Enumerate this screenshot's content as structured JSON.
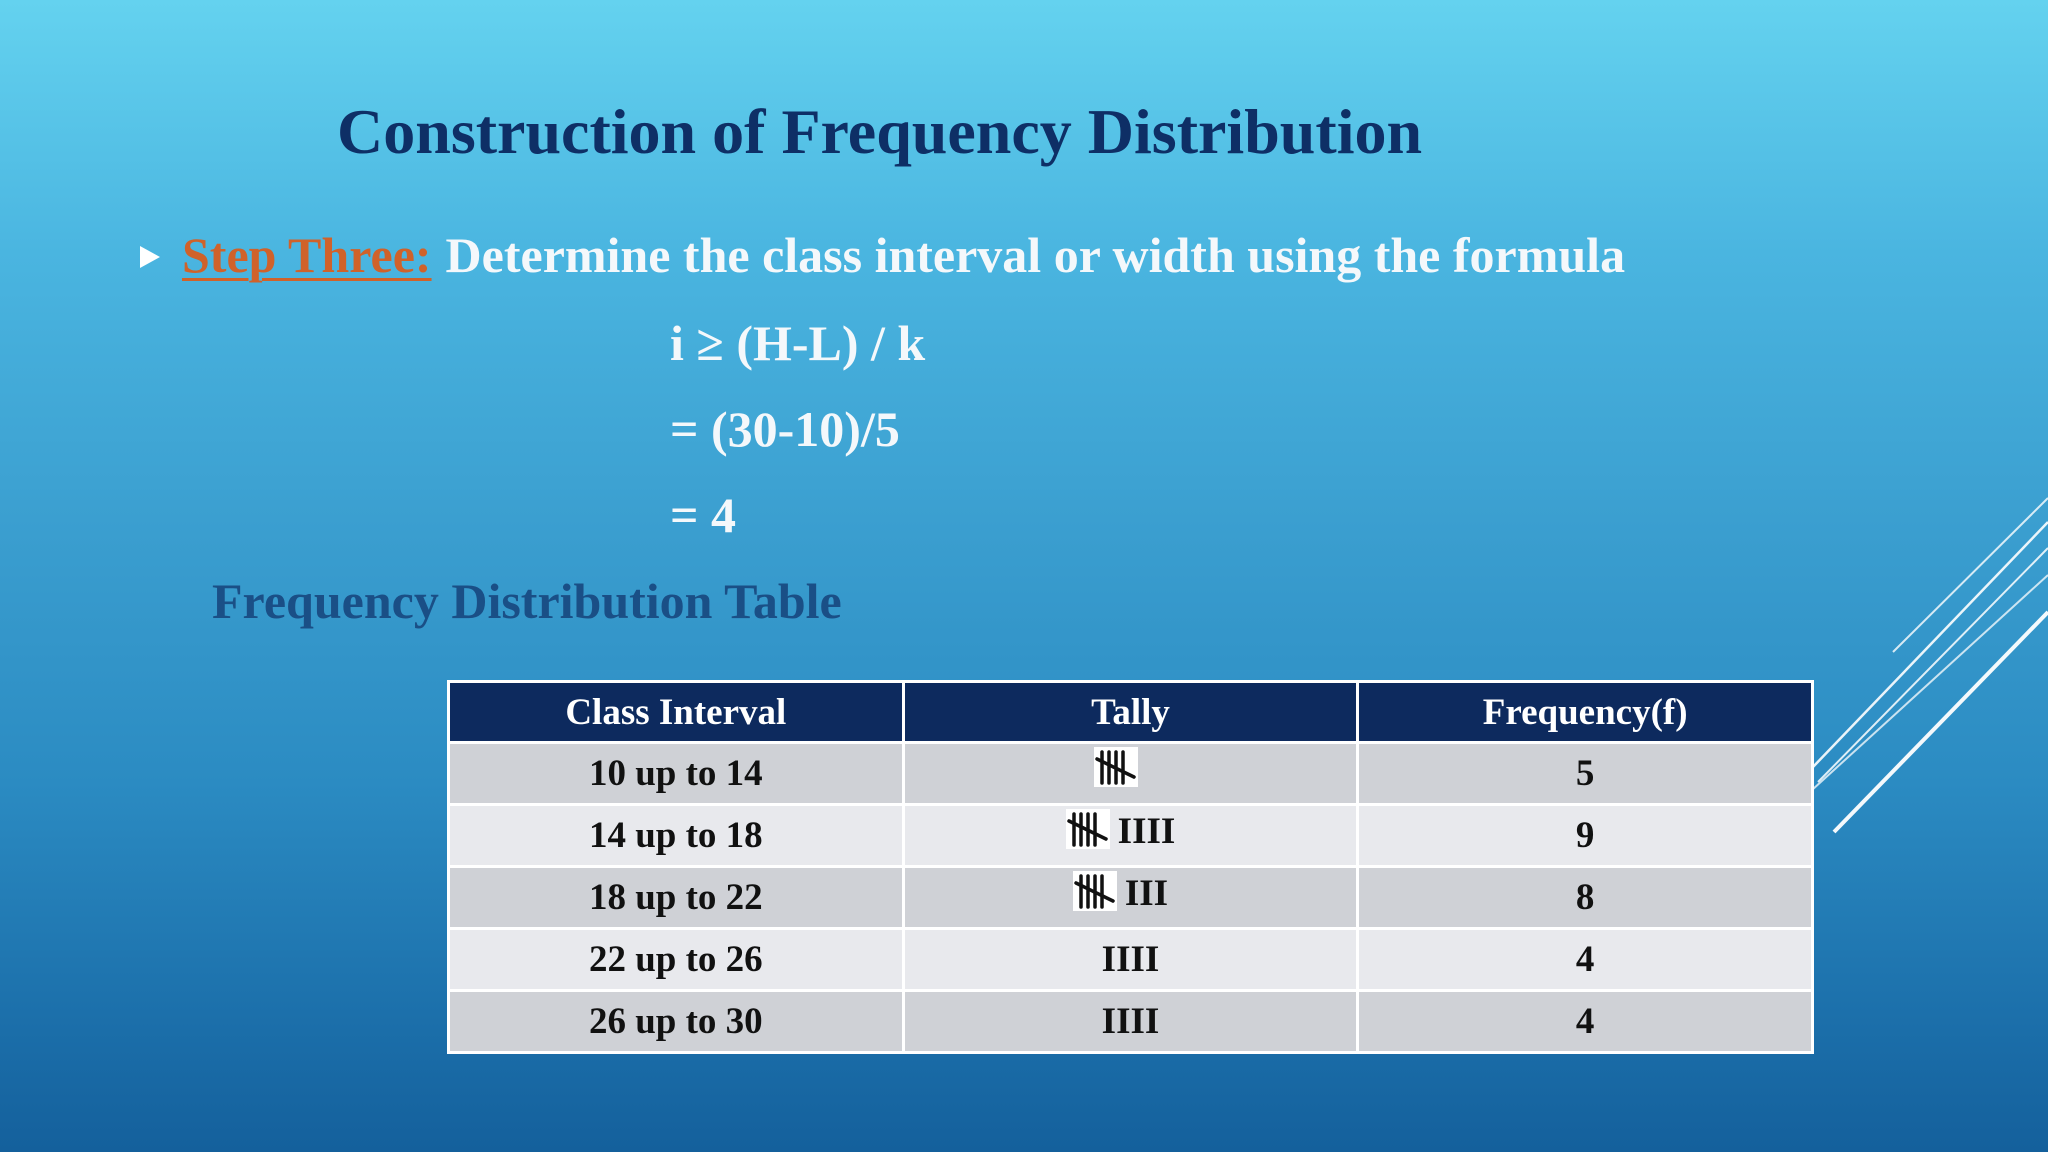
{
  "title": "Construction of Frequency Distribution",
  "step": {
    "label": "Step Three:",
    "text": "Determine the class interval or width using the formula"
  },
  "formula": {
    "line1": "i ≥ (H-L) / k",
    "line2": "= (30-10)/5",
    "line3": "= 4"
  },
  "table_heading": "Frequency Distribution Table",
  "table": {
    "headers": [
      "Class Interval",
      "Tally",
      "Frequency(f)"
    ],
    "rows": [
      {
        "interval": "10 up to 14",
        "tally_marks": "",
        "frequency": "5"
      },
      {
        "interval": "14 up to 18",
        "tally_marks": "IIII",
        "frequency": "9"
      },
      {
        "interval": "18 up to 22",
        "tally_marks": "III",
        "frequency": "8"
      },
      {
        "interval": "22 up to 26",
        "tally_marks": "IIII",
        "frequency": "4"
      },
      {
        "interval": "26 up to 30",
        "tally_marks": "IIII",
        "frequency": "4"
      }
    ]
  },
  "colors": {
    "title": "#0e2f66",
    "step_label": "#d0622a",
    "body_text": "#f4f8fb",
    "table_header_bg": "#0d2a5e"
  },
  "icons": {
    "bullet": "triangle-bullet-icon",
    "tally_five": "tally-five-icon",
    "decoration": "diagonal-lines-decoration"
  }
}
